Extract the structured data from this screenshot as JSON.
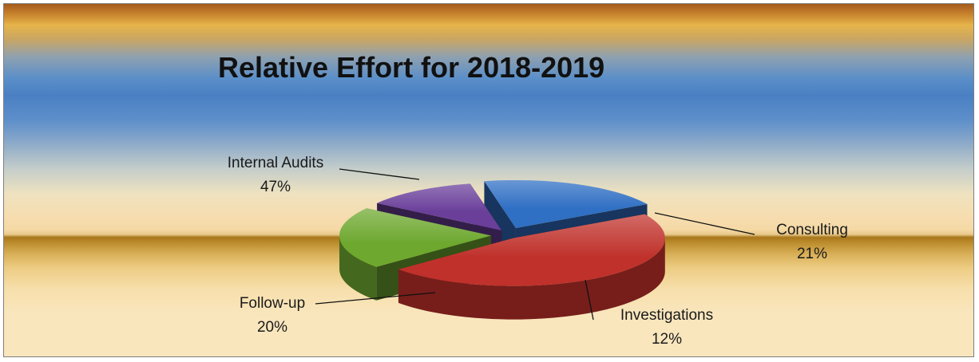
{
  "chart_data": {
    "type": "pie",
    "title": "Relative Effort for 2018-2019",
    "slices": [
      {
        "label": "Internal Audits",
        "value": 47,
        "pct_label": "47%",
        "color": "#c0312b"
      },
      {
        "label": "Consulting",
        "value": 21,
        "pct_label": "21%",
        "color": "#6ea82f"
      },
      {
        "label": "Investigations",
        "value": 12,
        "pct_label": "12%",
        "color": "#6a3f9a"
      },
      {
        "label": "Follow-up",
        "value": 20,
        "pct_label": "20%",
        "color": "#2f6fc4"
      }
    ],
    "legend": "none",
    "style": "3d-exploded"
  }
}
